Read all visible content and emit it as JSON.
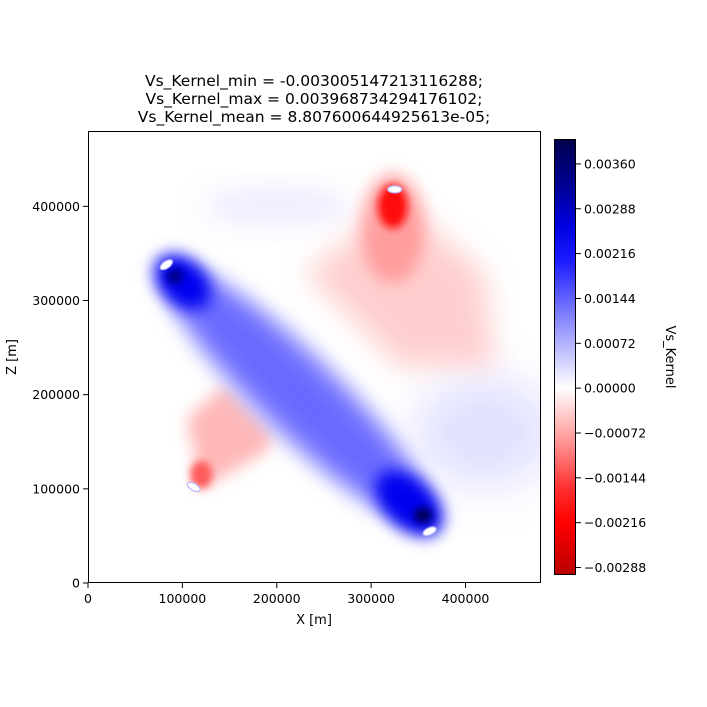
{
  "chart_data": {
    "type": "heatmap",
    "title_lines": [
      "Vs_Kernel_min = -0.003005147213116288;",
      "Vs_Kernel_max = 0.003968734294176102;",
      "Vs_Kernel_mean = 8.807600644925613e-05;"
    ],
    "xlabel": "X [m]",
    "ylabel": "Z [m]",
    "xlim": [
      0,
      480000
    ],
    "ylim": [
      0,
      480000
    ],
    "x_ticks": [
      0,
      100000,
      200000,
      300000,
      400000
    ],
    "y_ticks": [
      0,
      100000,
      200000,
      300000,
      400000
    ],
    "colorbar": {
      "label": "Vs_Kernel",
      "colormap": "seismic",
      "vmin": -0.003,
      "vmax": 0.004,
      "ticks": [
        0.0036,
        0.00288,
        0.00216,
        0.00144,
        0.00072,
        0.0,
        -0.00072,
        -0.00144,
        -0.00216,
        -0.00288
      ],
      "tick_labels": [
        "0.00360",
        "0.00288",
        "0.00216",
        "0.00144",
        "0.00072",
        "0.00000",
        "−0.00072",
        "−0.00144",
        "−0.00216",
        "−0.00288"
      ]
    },
    "features": [
      {
        "kind": "positive-band",
        "from": [
          90000,
          328000
        ],
        "to": [
          355000,
          72000
        ],
        "peak": 0.0036
      },
      {
        "kind": "negative-lobe",
        "center": [
          323000,
          400000
        ],
        "peak": -0.0026
      },
      {
        "kind": "negative-lobe",
        "center": [
          120000,
          115000
        ],
        "peak": -0.0016
      },
      {
        "kind": "negative-fan",
        "center": [
          360000,
          310000
        ],
        "peak": -0.0005
      },
      {
        "kind": "positive-fan",
        "center": [
          420000,
          160000
        ],
        "peak": 0.0004
      }
    ]
  }
}
